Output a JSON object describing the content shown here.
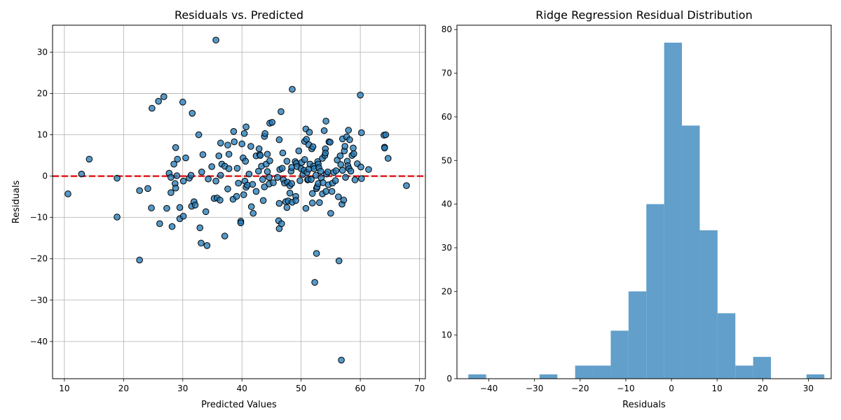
{
  "chart_data": [
    {
      "type": "scatter",
      "title": "Residuals vs. Predicted",
      "xlabel": "Predicted Values",
      "ylabel": "Residuals",
      "xlim": [
        8,
        71
      ],
      "ylim": [
        -49,
        36.5
      ],
      "xticks": [
        10,
        20,
        30,
        40,
        50,
        60,
        70
      ],
      "yticks": [
        -40,
        -30,
        -20,
        -10,
        0,
        10,
        20,
        30
      ],
      "grid": true,
      "marker_color": "#1f77b4",
      "marker_edge": "#000000",
      "reference_line": {
        "y": 0,
        "color": "#e31a1c",
        "style": "dashed"
      },
      "points": [
        [
          10.6,
          -4.3
        ],
        [
          12.9,
          0.5
        ],
        [
          14.2,
          4.1
        ],
        [
          18.9,
          -0.5
        ],
        [
          18.9,
          -9.9
        ],
        [
          22.7,
          -3.5
        ],
        [
          22.7,
          -20.3
        ],
        [
          24.1,
          -3.0
        ],
        [
          24.7,
          -7.7
        ],
        [
          24.8,
          16.4
        ],
        [
          25.9,
          18.1
        ],
        [
          26.1,
          -11.5
        ],
        [
          26.8,
          19.2
        ],
        [
          27.3,
          -7.8
        ],
        [
          27.7,
          0.7
        ],
        [
          28.0,
          -4.0
        ],
        [
          28.0,
          -0.3
        ],
        [
          28.2,
          -12.2
        ],
        [
          28.5,
          2.9
        ],
        [
          28.7,
          -1.8
        ],
        [
          28.8,
          -2.9
        ],
        [
          28.8,
          6.9
        ],
        [
          29.0,
          0.1
        ],
        [
          29.1,
          4.1
        ],
        [
          29.5,
          -10.3
        ],
        [
          29.5,
          -7.6
        ],
        [
          30.0,
          17.9
        ],
        [
          30.1,
          -9.7
        ],
        [
          30.1,
          -1.2
        ],
        [
          30.5,
          4.4
        ],
        [
          31.1,
          -0.5
        ],
        [
          31.4,
          0.2
        ],
        [
          31.5,
          -7.3
        ],
        [
          31.6,
          15.2
        ],
        [
          31.9,
          -6.2
        ],
        [
          32.1,
          -7.0
        ],
        [
          32.7,
          10.0
        ],
        [
          32.9,
          -12.5
        ],
        [
          33.1,
          -16.2
        ],
        [
          33.2,
          1.0
        ],
        [
          33.4,
          5.2
        ],
        [
          33.9,
          -8.6
        ],
        [
          34.1,
          -16.8
        ],
        [
          34.3,
          -0.7
        ],
        [
          34.9,
          2.3
        ],
        [
          35.3,
          -5.4
        ],
        [
          35.6,
          32.9
        ],
        [
          35.6,
          -1.2
        ],
        [
          35.8,
          -5.3
        ],
        [
          36.1,
          4.9
        ],
        [
          36.3,
          -5.8
        ],
        [
          36.4,
          8.0
        ],
        [
          36.4,
          0.2
        ],
        [
          36.6,
          2.9
        ],
        [
          37.1,
          -14.5
        ],
        [
          37.1,
          2.4
        ],
        [
          37.6,
          7.5
        ],
        [
          37.6,
          -3.1
        ],
        [
          37.8,
          5.3
        ],
        [
          37.8,
          1.8
        ],
        [
          38.5,
          -5.6
        ],
        [
          38.6,
          10.8
        ],
        [
          38.7,
          8.3
        ],
        [
          39.1,
          -4.9
        ],
        [
          39.2,
          1.9
        ],
        [
          39.4,
          -1.7
        ],
        [
          39.8,
          -10.9
        ],
        [
          39.8,
          -11.3
        ],
        [
          40.0,
          7.8
        ],
        [
          40.2,
          4.4
        ],
        [
          40.3,
          -4.5
        ],
        [
          40.4,
          10.3
        ],
        [
          40.5,
          -1.2
        ],
        [
          40.6,
          3.6
        ],
        [
          40.7,
          11.9
        ],
        [
          40.7,
          -2.7
        ],
        [
          40.9,
          -2.2
        ],
        [
          41.2,
          0.5
        ],
        [
          41.5,
          7.2
        ],
        [
          41.6,
          -7.4
        ],
        [
          41.8,
          -2.0
        ],
        [
          41.9,
          -9.0
        ],
        [
          42.4,
          4.9
        ],
        [
          42.4,
          -3.7
        ],
        [
          42.8,
          1.2
        ],
        [
          42.9,
          6.6
        ],
        [
          43.0,
          5.2
        ],
        [
          43.1,
          5.0
        ],
        [
          43.3,
          2.4
        ],
        [
          43.5,
          -0.8
        ],
        [
          43.6,
          -5.9
        ],
        [
          43.8,
          9.6
        ],
        [
          43.8,
          -2.6
        ],
        [
          43.9,
          10.3
        ],
        [
          44.1,
          2.9
        ],
        [
          44.3,
          5.3
        ],
        [
          44.3,
          1.1
        ],
        [
          44.6,
          -1.9
        ],
        [
          44.6,
          -0.3
        ],
        [
          44.7,
          3.7
        ],
        [
          44.7,
          12.8
        ],
        [
          45.1,
          13.0
        ],
        [
          45.3,
          -1.6
        ],
        [
          46.0,
          -0.3
        ],
        [
          46.2,
          -10.8
        ],
        [
          46.3,
          8.8
        ],
        [
          46.3,
          -6.6
        ],
        [
          46.3,
          -12.7
        ],
        [
          46.4,
          1.6
        ],
        [
          46.6,
          15.6
        ],
        [
          46.7,
          -11.5
        ],
        [
          46.8,
          1.9
        ],
        [
          46.9,
          5.6
        ],
        [
          47.0,
          -0.9
        ],
        [
          47.2,
          -1.7
        ],
        [
          47.4,
          -6.2
        ],
        [
          47.6,
          -7.6
        ],
        [
          47.6,
          3.6
        ],
        [
          47.7,
          -1.5
        ],
        [
          47.8,
          -6.0
        ],
        [
          48.1,
          -2.3
        ],
        [
          48.1,
          -4.1
        ],
        [
          48.3,
          1.2
        ],
        [
          48.4,
          2.1
        ],
        [
          48.4,
          -1.8
        ],
        [
          48.5,
          21.0
        ],
        [
          48.5,
          -6.3
        ],
        [
          49.0,
          3.5
        ],
        [
          49.1,
          -4.9
        ],
        [
          49.1,
          -5.9
        ],
        [
          49.2,
          3.1
        ],
        [
          49.3,
          2.3
        ],
        [
          49.6,
          6.1
        ],
        [
          49.8,
          -1.1
        ],
        [
          50.0,
          1.8
        ],
        [
          50.1,
          3.3
        ],
        [
          50.3,
          0.4
        ],
        [
          50.5,
          1.4
        ],
        [
          50.6,
          4.0
        ],
        [
          50.6,
          8.4
        ],
        [
          50.8,
          11.4
        ],
        [
          50.8,
          -7.8
        ],
        [
          50.9,
          8.9
        ],
        [
          51.0,
          0.9
        ],
        [
          51.1,
          -0.9
        ],
        [
          51.2,
          -0.8
        ],
        [
          51.3,
          1.7
        ],
        [
          51.3,
          7.6
        ],
        [
          51.4,
          10.6
        ],
        [
          51.5,
          2.9
        ],
        [
          51.7,
          -0.8
        ],
        [
          51.8,
          6.6
        ],
        [
          51.9,
          -4.2
        ],
        [
          51.9,
          -6.5
        ],
        [
          52.0,
          7.1
        ],
        [
          52.1,
          2.4
        ],
        [
          52.2,
          1.8
        ],
        [
          52.3,
          -25.7
        ],
        [
          52.5,
          0.2
        ],
        [
          52.6,
          -18.7
        ],
        [
          52.6,
          -3.0
        ],
        [
          52.7,
          -2.6
        ],
        [
          52.8,
          3.5
        ],
        [
          52.9,
          2.9
        ],
        [
          52.9,
          -1.8
        ],
        [
          53.0,
          2.0
        ],
        [
          53.1,
          -6.4
        ],
        [
          53.3,
          1.2
        ],
        [
          53.4,
          -0.4
        ],
        [
          53.6,
          -4.3
        ],
        [
          53.6,
          4.3
        ],
        [
          53.7,
          -1.6
        ],
        [
          53.9,
          11.0
        ],
        [
          54.0,
          5.0
        ],
        [
          54.1,
          6.6
        ],
        [
          54.1,
          5.6
        ],
        [
          54.2,
          -3.7
        ],
        [
          54.2,
          13.3
        ],
        [
          54.3,
          0.5
        ],
        [
          54.5,
          1.0
        ],
        [
          54.6,
          -2.1
        ],
        [
          54.7,
          8.3
        ],
        [
          54.9,
          8.2
        ],
        [
          55.0,
          -9.0
        ],
        [
          55.2,
          -3.7
        ],
        [
          55.3,
          -1.7
        ],
        [
          55.5,
          0.9
        ],
        [
          55.8,
          -1.1
        ],
        [
          55.9,
          1.3
        ],
        [
          56.1,
          3.9
        ],
        [
          56.3,
          -5.0
        ],
        [
          56.4,
          -20.5
        ],
        [
          56.6,
          4.9
        ],
        [
          56.7,
          2.8
        ],
        [
          56.8,
          -44.5
        ],
        [
          56.9,
          -6.8
        ],
        [
          57.0,
          1.4
        ],
        [
          57.0,
          9.0
        ],
        [
          57.2,
          -5.8
        ],
        [
          57.3,
          6.1
        ],
        [
          57.4,
          7.2
        ],
        [
          57.5,
          -0.3
        ],
        [
          57.7,
          9.5
        ],
        [
          57.8,
          3.6
        ],
        [
          57.9,
          2.5
        ],
        [
          58.0,
          11.1
        ],
        [
          58.1,
          1.8
        ],
        [
          58.2,
          8.8
        ],
        [
          58.4,
          1.2
        ],
        [
          58.6,
          5.0
        ],
        [
          58.8,
          6.8
        ],
        [
          58.9,
          5.4
        ],
        [
          59.1,
          -0.9
        ],
        [
          59.5,
          3.0
        ],
        [
          60.0,
          19.6
        ],
        [
          60.1,
          2.2
        ],
        [
          60.2,
          10.5
        ],
        [
          60.2,
          -0.6
        ],
        [
          61.4,
          1.6
        ],
        [
          64.0,
          9.9
        ],
        [
          64.1,
          7.0
        ],
        [
          64.1,
          6.8
        ],
        [
          64.3,
          10.0
        ],
        [
          64.7,
          4.3
        ],
        [
          67.8,
          -2.3
        ]
      ]
    },
    {
      "type": "bar",
      "title": "Ridge Regression Residual Distribution",
      "xlabel": "Residuals",
      "ylabel": "",
      "xlim": [
        -47,
        35
      ],
      "ylim": [
        0,
        81
      ],
      "xticks": [
        -40,
        -30,
        -20,
        -10,
        0,
        10,
        20,
        30
      ],
      "yticks": [
        0,
        10,
        20,
        30,
        40,
        50,
        60,
        70,
        80
      ],
      "grid": false,
      "bar_color": "#629fca",
      "bins": [
        {
          "start": -44.5,
          "end": -40.6,
          "count": 1
        },
        {
          "start": -40.6,
          "end": -36.7,
          "count": 0
        },
        {
          "start": -36.7,
          "end": -32.8,
          "count": 0
        },
        {
          "start": -32.8,
          "end": -28.9,
          "count": 0
        },
        {
          "start": -28.9,
          "end": -25.0,
          "count": 1
        },
        {
          "start": -25.0,
          "end": -21.1,
          "count": 0
        },
        {
          "start": -21.1,
          "end": -17.2,
          "count": 3
        },
        {
          "start": -17.2,
          "end": -13.3,
          "count": 3
        },
        {
          "start": -13.3,
          "end": -9.4,
          "count": 11
        },
        {
          "start": -9.4,
          "end": -5.5,
          "count": 20
        },
        {
          "start": -5.5,
          "end": -1.6,
          "count": 40
        },
        {
          "start": -1.6,
          "end": 2.3,
          "count": 77
        },
        {
          "start": 2.3,
          "end": 6.2,
          "count": 58
        },
        {
          "start": 6.2,
          "end": 10.1,
          "count": 34
        },
        {
          "start": 10.1,
          "end": 14.0,
          "count": 15
        },
        {
          "start": 14.0,
          "end": 17.9,
          "count": 3
        },
        {
          "start": 17.9,
          "end": 21.8,
          "count": 5
        },
        {
          "start": 21.8,
          "end": 25.7,
          "count": 0
        },
        {
          "start": 25.7,
          "end": 29.6,
          "count": 0
        },
        {
          "start": 29.6,
          "end": 33.5,
          "count": 1
        }
      ]
    }
  ]
}
